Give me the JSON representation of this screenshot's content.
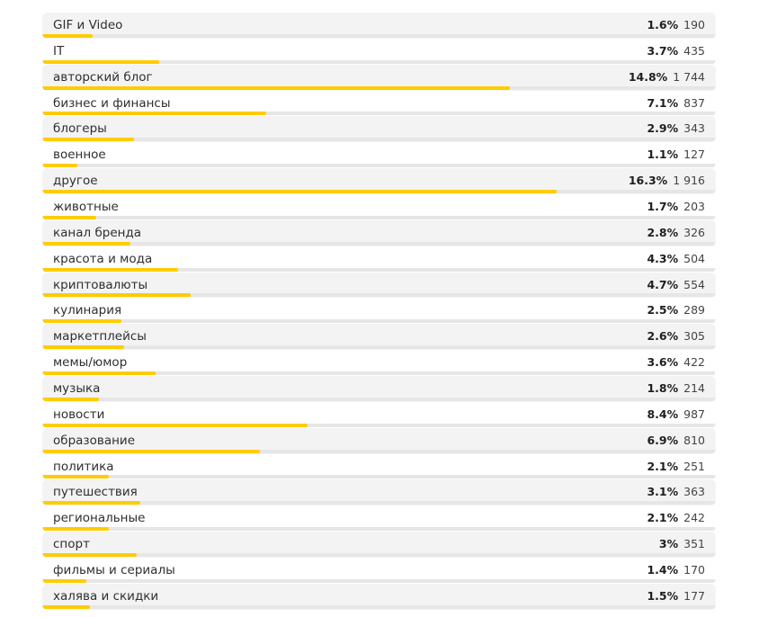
{
  "chart_data": {
    "type": "bar",
    "orientation": "horizontal",
    "bar_color": "#ffcc00",
    "max_percent": 16.3,
    "rows": [
      {
        "label": "GIF и Video",
        "percent": 1.6,
        "percent_label": "1.6%",
        "count": "190"
      },
      {
        "label": "IT",
        "percent": 3.7,
        "percent_label": "3.7%",
        "count": "435"
      },
      {
        "label": "авторский блог",
        "percent": 14.8,
        "percent_label": "14.8%",
        "count": "1 744"
      },
      {
        "label": "бизнес и финансы",
        "percent": 7.1,
        "percent_label": "7.1%",
        "count": "837"
      },
      {
        "label": "блогеры",
        "percent": 2.9,
        "percent_label": "2.9%",
        "count": "343"
      },
      {
        "label": "военное",
        "percent": 1.1,
        "percent_label": "1.1%",
        "count": "127"
      },
      {
        "label": "другое",
        "percent": 16.3,
        "percent_label": "16.3%",
        "count": "1 916"
      },
      {
        "label": "животные",
        "percent": 1.7,
        "percent_label": "1.7%",
        "count": "203"
      },
      {
        "label": "канал бренда",
        "percent": 2.8,
        "percent_label": "2.8%",
        "count": "326"
      },
      {
        "label": "красота и мода",
        "percent": 4.3,
        "percent_label": "4.3%",
        "count": "504"
      },
      {
        "label": "криптовалюты",
        "percent": 4.7,
        "percent_label": "4.7%",
        "count": "554"
      },
      {
        "label": "кулинария",
        "percent": 2.5,
        "percent_label": "2.5%",
        "count": "289"
      },
      {
        "label": "маркетплейсы",
        "percent": 2.6,
        "percent_label": "2.6%",
        "count": "305"
      },
      {
        "label": "мемы/юмор",
        "percent": 3.6,
        "percent_label": "3.6%",
        "count": "422"
      },
      {
        "label": "музыка",
        "percent": 1.8,
        "percent_label": "1.8%",
        "count": "214"
      },
      {
        "label": "новости",
        "percent": 8.4,
        "percent_label": "8.4%",
        "count": "987"
      },
      {
        "label": "образование",
        "percent": 6.9,
        "percent_label": "6.9%",
        "count": "810"
      },
      {
        "label": "политика",
        "percent": 2.1,
        "percent_label": "2.1%",
        "count": "251"
      },
      {
        "label": "путешествия",
        "percent": 3.1,
        "percent_label": "3.1%",
        "count": "363"
      },
      {
        "label": "региональные",
        "percent": 2.1,
        "percent_label": "2.1%",
        "count": "242"
      },
      {
        "label": "спорт",
        "percent": 3,
        "percent_label": "3%",
        "count": "351"
      },
      {
        "label": "фильмы и сериалы",
        "percent": 1.4,
        "percent_label": "1.4%",
        "count": "170"
      },
      {
        "label": "халява и скидки",
        "percent": 1.5,
        "percent_label": "1.5%",
        "count": "177"
      }
    ]
  }
}
